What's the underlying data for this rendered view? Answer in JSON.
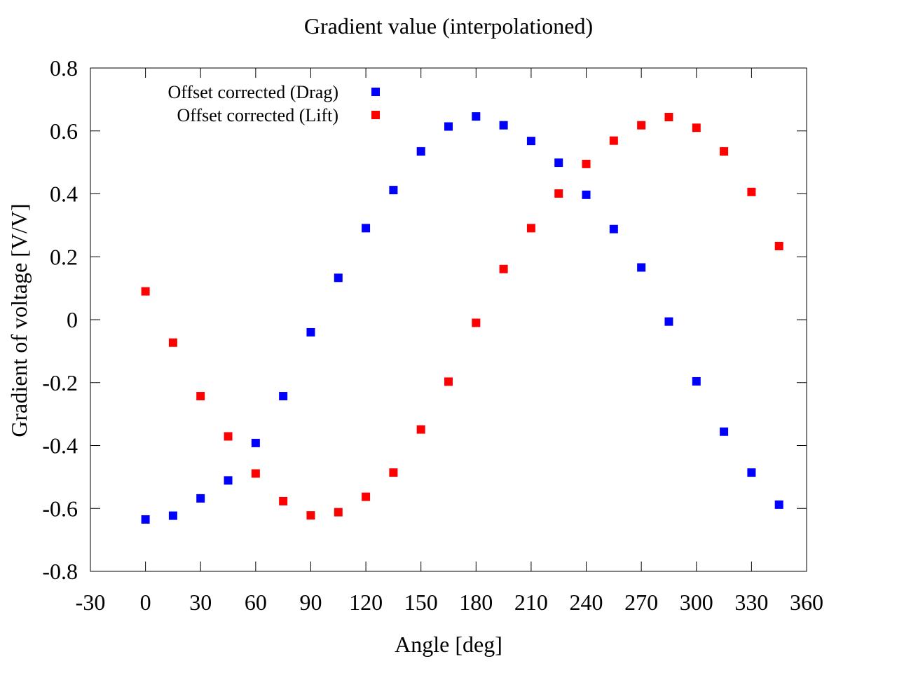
{
  "chart_data": {
    "type": "scatter",
    "title": "Gradient value (interpolationed)",
    "xlabel": "Angle [deg]",
    "ylabel": "Gradient of voltage [V/V]",
    "xlim": [
      -30,
      360
    ],
    "ylim": [
      -0.8,
      0.8
    ],
    "xticks": [
      -30,
      0,
      30,
      60,
      90,
      120,
      150,
      180,
      210,
      240,
      270,
      300,
      330,
      360
    ],
    "yticks": [
      -0.8,
      -0.6,
      -0.4,
      -0.2,
      0,
      0.2,
      0.4,
      0.6,
      0.8
    ],
    "xtick_labels": [
      "-30",
      "0",
      "30",
      "60",
      "90",
      "120",
      "150",
      "180",
      "210",
      "240",
      "270",
      "300",
      "330",
      "360"
    ],
    "ytick_labels": [
      "-0.8",
      "-0.6",
      "-0.4",
      "-0.2",
      "0",
      "0.2",
      "0.4",
      "0.6",
      "0.8"
    ],
    "grid": false,
    "legend_position": "top-left",
    "series": [
      {
        "name": "Offset corrected (Drag)",
        "color": "#0000ff",
        "marker": "square",
        "points": [
          [
            0,
            -0.635
          ],
          [
            15,
            -0.623
          ],
          [
            30,
            -0.568
          ],
          [
            45,
            -0.511
          ],
          [
            60,
            -0.392
          ],
          [
            75,
            -0.243
          ],
          [
            90,
            -0.04
          ],
          [
            105,
            0.133
          ],
          [
            120,
            0.291
          ],
          [
            135,
            0.412
          ],
          [
            150,
            0.535
          ],
          [
            165,
            0.614
          ],
          [
            180,
            0.646
          ],
          [
            195,
            0.618
          ],
          [
            210,
            0.568
          ],
          [
            225,
            0.499
          ],
          [
            240,
            0.397
          ],
          [
            255,
            0.288
          ],
          [
            270,
            0.166
          ],
          [
            285,
            -0.006
          ],
          [
            300,
            -0.196
          ],
          [
            315,
            -0.356
          ],
          [
            330,
            -0.486
          ],
          [
            345,
            -0.588
          ]
        ]
      },
      {
        "name": "Offset corrected (Lift)",
        "color": "#ff0000",
        "marker": "square",
        "points": [
          [
            0,
            0.09
          ],
          [
            15,
            -0.073
          ],
          [
            30,
            -0.243
          ],
          [
            45,
            -0.371
          ],
          [
            60,
            -0.489
          ],
          [
            75,
            -0.577
          ],
          [
            90,
            -0.622
          ],
          [
            105,
            -0.612
          ],
          [
            120,
            -0.563
          ],
          [
            135,
            -0.486
          ],
          [
            150,
            -0.349
          ],
          [
            165,
            -0.197
          ],
          [
            180,
            -0.01
          ],
          [
            195,
            0.161
          ],
          [
            210,
            0.291
          ],
          [
            225,
            0.401
          ],
          [
            240,
            0.495
          ],
          [
            255,
            0.569
          ],
          [
            270,
            0.618
          ],
          [
            285,
            0.644
          ],
          [
            300,
            0.61
          ],
          [
            315,
            0.535
          ],
          [
            330,
            0.406
          ],
          [
            345,
            0.234
          ]
        ]
      }
    ]
  }
}
